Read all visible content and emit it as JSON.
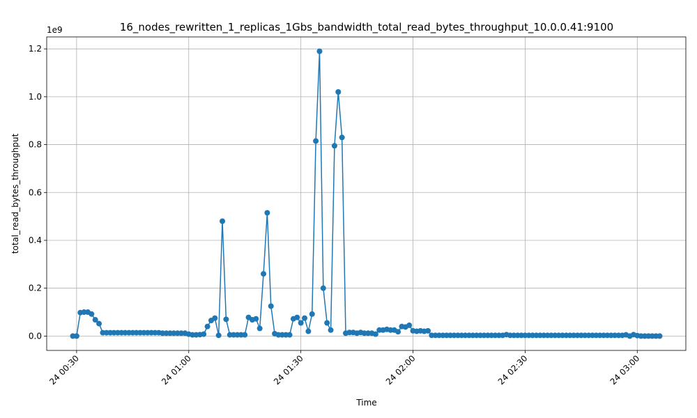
{
  "chart_data": {
    "type": "line",
    "title": "16_nodes_rewritten_1_replicas_1Gbs_bandwidth_total_read_bytes_throughput_10.0.0.41:9100",
    "x_label": "Time",
    "y_label": "total_read_bytes_throughput",
    "y_offset_label": "1e9",
    "grid": true,
    "x": [
      "24 00:29",
      "24 00:30",
      "24 00:31",
      "24 00:32",
      "24 00:33",
      "24 00:34",
      "24 00:35",
      "24 00:36",
      "24 00:37",
      "24 00:38",
      "24 00:39",
      "24 00:40",
      "24 00:41",
      "24 00:42",
      "24 00:43",
      "24 00:44",
      "24 00:45",
      "24 00:46",
      "24 00:47",
      "24 00:48",
      "24 00:49",
      "24 00:50",
      "24 00:51",
      "24 00:52",
      "24 00:53",
      "24 00:54",
      "24 00:55",
      "24 00:56",
      "24 00:57",
      "24 00:58",
      "24 00:59",
      "24 01:00",
      "24 01:01",
      "24 01:02",
      "24 01:03",
      "24 01:04",
      "24 01:05",
      "24 01:06",
      "24 01:07",
      "24 01:08",
      "24 01:09",
      "24 01:10",
      "24 01:11",
      "24 01:12",
      "24 01:13",
      "24 01:14",
      "24 01:15",
      "24 01:16",
      "24 01:17",
      "24 01:18",
      "24 01:19",
      "24 01:20",
      "24 01:21",
      "24 01:22",
      "24 01:23",
      "24 01:24",
      "24 01:25",
      "24 01:26",
      "24 01:27",
      "24 01:28",
      "24 01:29",
      "24 01:30",
      "24 01:31",
      "24 01:32",
      "24 01:33",
      "24 01:34",
      "24 01:35",
      "24 01:36",
      "24 01:37",
      "24 01:38",
      "24 01:39",
      "24 01:40",
      "24 01:41",
      "24 01:42",
      "24 01:43",
      "24 01:44",
      "24 01:45",
      "24 01:46",
      "24 01:47",
      "24 01:48",
      "24 01:49",
      "24 01:50",
      "24 01:51",
      "24 01:52",
      "24 01:53",
      "24 01:54",
      "24 01:55",
      "24 01:56",
      "24 01:57",
      "24 01:58",
      "24 01:59",
      "24 02:00",
      "24 02:01",
      "24 02:02",
      "24 02:03",
      "24 02:04",
      "24 02:05",
      "24 02:06",
      "24 02:07",
      "24 02:08",
      "24 02:09",
      "24 02:10",
      "24 02:11",
      "24 02:12",
      "24 02:13",
      "24 02:14",
      "24 02:15",
      "24 02:16",
      "24 02:17",
      "24 02:18",
      "24 02:19",
      "24 02:20",
      "24 02:21",
      "24 02:22",
      "24 02:23",
      "24 02:24",
      "24 02:25",
      "24 02:26",
      "24 02:27",
      "24 02:28",
      "24 02:29",
      "24 02:30",
      "24 02:31",
      "24 02:32",
      "24 02:33",
      "24 02:34",
      "24 02:35",
      "24 02:36",
      "24 02:37",
      "24 02:38",
      "24 02:39",
      "24 02:40",
      "24 02:41",
      "24 02:42",
      "24 02:43",
      "24 02:44",
      "24 02:45",
      "24 02:46",
      "24 02:47",
      "24 02:48",
      "24 02:49",
      "24 02:50",
      "24 02:51",
      "24 02:52",
      "24 02:53",
      "24 02:54",
      "24 02:55",
      "24 02:56",
      "24 02:57",
      "24 02:58",
      "24 02:59",
      "24 03:00",
      "24 03:01",
      "24 03:02",
      "24 03:03",
      "24 03:04",
      "24 03:05",
      "24 03:06"
    ],
    "series": [
      {
        "name": "total_read_bytes_throughput",
        "color": "#1f77b4",
        "values": [
          0,
          0,
          0.098,
          0.1,
          0.1,
          0.092,
          0.068,
          0.052,
          0.014,
          0.014,
          0.014,
          0.014,
          0.014,
          0.014,
          0.014,
          0.014,
          0.014,
          0.014,
          0.014,
          0.014,
          0.014,
          0.014,
          0.014,
          0.014,
          0.012,
          0.012,
          0.012,
          0.012,
          0.012,
          0.012,
          0.012,
          0.008,
          0.005,
          0.005,
          0.006,
          0.008,
          0.04,
          0.065,
          0.075,
          0.003,
          0.48,
          0.07,
          0.005,
          0.005,
          0.005,
          0.005,
          0.005,
          0.078,
          0.068,
          0.072,
          0.032,
          0.26,
          0.515,
          0.125,
          0.01,
          0.005,
          0.005,
          0.005,
          0.005,
          0.072,
          0.078,
          0.055,
          0.075,
          0.02,
          0.092,
          0.815,
          1.19,
          0.2,
          0.055,
          0.025,
          0.795,
          1.02,
          0.83,
          0.012,
          0.015,
          0.015,
          0.012,
          0.015,
          0.012,
          0.012,
          0.012,
          0.008,
          0.025,
          0.025,
          0.028,
          0.025,
          0.025,
          0.018,
          0.04,
          0.038,
          0.045,
          0.022,
          0.02,
          0.022,
          0.02,
          0.022,
          0.003,
          0.003,
          0.003,
          0.003,
          0.003,
          0.003,
          0.003,
          0.003,
          0.003,
          0.003,
          0.003,
          0.003,
          0.003,
          0.003,
          0.003,
          0.003,
          0.003,
          0.003,
          0.003,
          0.003,
          0.006,
          0.003,
          0.003,
          0.003,
          0.003,
          0.003,
          0.003,
          0.003,
          0.003,
          0.003,
          0.003,
          0.003,
          0.003,
          0.003,
          0.003,
          0.003,
          0.003,
          0.003,
          0.003,
          0.003,
          0.003,
          0.003,
          0.003,
          0.003,
          0.003,
          0.003,
          0.003,
          0.003,
          0.003,
          0.003,
          0.003,
          0.003,
          0.005,
          0,
          0.006,
          0.002,
          0,
          0,
          0,
          0,
          0,
          0
        ]
      }
    ],
    "xlim": [
      "24 00:22",
      "24 03:13"
    ],
    "xticks": [
      "24 00:30",
      "24 01:00",
      "24 01:30",
      "24 02:00",
      "24 02:30",
      "24 03:00"
    ],
    "ylim": [
      -0.06,
      1.25
    ],
    "yticks": [
      {
        "value": 0,
        "label": "0.0"
      },
      0.2,
      0.4,
      0.6,
      0.8,
      {
        "value": 1,
        "label": "1.0"
      },
      1.2
    ]
  }
}
